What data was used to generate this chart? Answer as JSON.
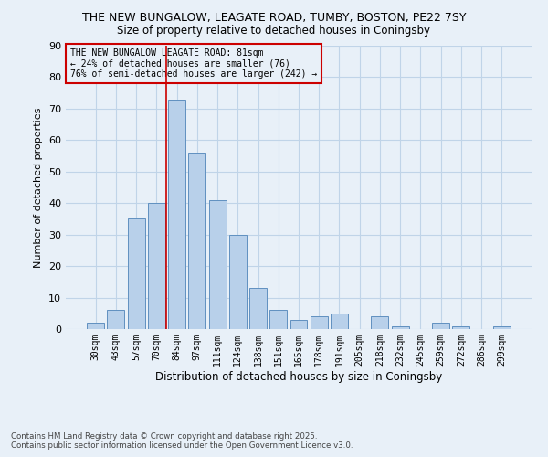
{
  "title_line1": "THE NEW BUNGALOW, LEAGATE ROAD, TUMBY, BOSTON, PE22 7SY",
  "title_line2": "Size of property relative to detached houses in Coningsby",
  "xlabel": "Distribution of detached houses by size in Coningsby",
  "ylabel": "Number of detached properties",
  "categories": [
    "30sqm",
    "43sqm",
    "57sqm",
    "70sqm",
    "84sqm",
    "97sqm",
    "111sqm",
    "124sqm",
    "138sqm",
    "151sqm",
    "165sqm",
    "178sqm",
    "191sqm",
    "205sqm",
    "218sqm",
    "232sqm",
    "245sqm",
    "259sqm",
    "272sqm",
    "286sqm",
    "299sqm"
  ],
  "values": [
    2,
    6,
    35,
    40,
    73,
    56,
    41,
    30,
    13,
    6,
    3,
    4,
    5,
    0,
    4,
    1,
    0,
    2,
    1,
    0,
    1
  ],
  "bar_color": "#b8d0ea",
  "bar_edge_color": "#6090c0",
  "grid_color": "#c0d4e8",
  "bg_color": "#e8f0f8",
  "vline_color": "#cc0000",
  "vline_bar_index": 4,
  "annotation_text": "THE NEW BUNGALOW LEAGATE ROAD: 81sqm\n← 24% of detached houses are smaller (76)\n76% of semi-detached houses are larger (242) →",
  "annotation_box_color": "#cc0000",
  "ylim": [
    0,
    90
  ],
  "yticks": [
    0,
    10,
    20,
    30,
    40,
    50,
    60,
    70,
    80,
    90
  ],
  "footnote_line1": "Contains HM Land Registry data © Crown copyright and database right 2025.",
  "footnote_line2": "Contains public sector information licensed under the Open Government Licence v3.0."
}
